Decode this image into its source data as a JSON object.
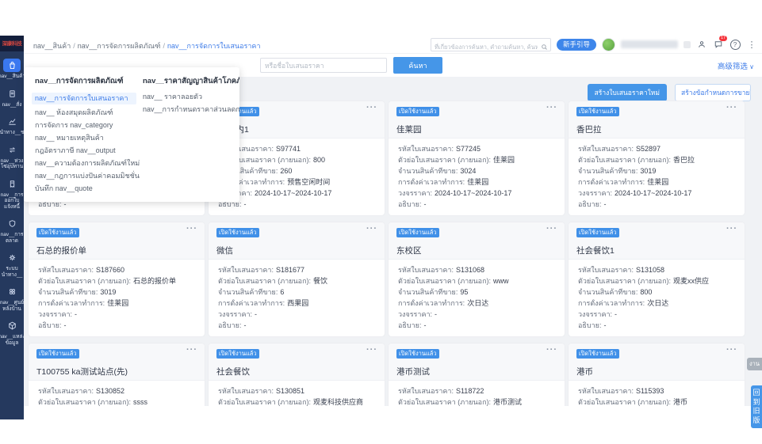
{
  "logo": {
    "text": "深康科技"
  },
  "breadcrumb": {
    "items": [
      "nav__สินค้า",
      "nav__การจัดการผลิตภัณฑ์",
      "nav__การจัดการใบเสนอราคา"
    ]
  },
  "header": {
    "search_placeholder": "ที่เกี่ยวข้องการค้นหา, คำถามค้นหา, ค้นหาเอกสา",
    "guide_button": "新手引导",
    "badge_count": "17"
  },
  "toolbar": {
    "search_placeholder": "หรือชื่อใบเสนอราคา",
    "search_button": "ค้นหา",
    "advanced_filter": "高级筛选"
  },
  "actions": {
    "create_quote": "สร้างใบเสนอราคาใหม่",
    "batch_create": "สร้างข้อกำหนดการขายใหม่เป็นชุด"
  },
  "sidebar": {
    "items": [
      {
        "icon": "bag",
        "label": "nav__สินค้า",
        "active": true
      },
      {
        "icon": "doc",
        "label": "nav__สั่ง",
        "active": false
      },
      {
        "icon": "chart",
        "label": "นำทาง__ช",
        "active": false
      },
      {
        "icon": "swap",
        "label": "nav__ห่วง\nโซ่อุปทาน",
        "active": false
      },
      {
        "icon": "invoice",
        "label": "nav__การ\nออกใบ\nแจ้งหนี้",
        "active": false
      },
      {
        "icon": "shield",
        "label": "nav__การ\nตลาด",
        "active": false
      },
      {
        "icon": "gear",
        "label": "ระบบ\nนำทาง__",
        "active": false
      },
      {
        "icon": "circles",
        "label": "nav__ศูนย์\nหลังบ้าน",
        "active": false
      },
      {
        "icon": "cube",
        "label": "nav__แหล่ง\nข้อมูล",
        "active": false
      }
    ]
  },
  "menu": {
    "col1": {
      "header": "nav__การจัดการผลิตภัณฑ์",
      "items": [
        {
          "label": "nav__การจัดการใบเสนอราคา",
          "active": true
        },
        {
          "label": "nav__ ห้องสมุดผลิตภัณฑ์",
          "active": false
        },
        {
          "label": "การจัดการ nav_category",
          "active": false
        },
        {
          "label": "nav__ หมายเหตุสินค้า",
          "active": false
        },
        {
          "label": "กฎอัตราภาษี nav__output",
          "active": false
        },
        {
          "label": "nav__ความต้องการผลิตภัณฑ์ใหม่",
          "active": false
        },
        {
          "label": "nav__กฎการแบ่งปันค่าคอมมิชชั่น",
          "active": false
        },
        {
          "label": "บันทึก nav__quote",
          "active": false
        }
      ]
    },
    "col2": {
      "header": "nav__ราคาสัญญาสินค้าโภคภัณฑ์",
      "items": [
        {
          "label": "nav__ ราคาลอยตัว",
          "active": false
        },
        {
          "label": "nav__การกำหนดราคาส่วนลดการสั่งซื้อแบบเต็ม",
          "active": false
        }
      ]
    }
  },
  "badge_active": "เปิดใช้งานแล้ว",
  "card_labels": {
    "code": "รหัสใบเสนอราคา:",
    "abbr": "ตัวย่อใบเสนอราคา (ภายนอก):",
    "qty": "จำนวนสินค้าที่ขาย:",
    "hours": "การตั้งค่าเวลาทำการ:",
    "cycle": "วงจรราคา:",
    "desc": "อธิบาย:"
  },
  "cards": [
    {
      "title": "",
      "values": {
        "code": "",
        "abbr": "",
        "qty": "",
        "hours": "",
        "cycle": "-",
        "desc": "-"
      }
    },
    {
      "title": "报价-内1",
      "values": {
        "code": "S97741",
        "abbr": "800",
        "qty": "260",
        "hours": "预售空闲时间",
        "cycle": "2024-10-17~2024-10-17",
        "desc": "-"
      }
    },
    {
      "title": "佳莱园",
      "values": {
        "code": "S77245",
        "abbr": "佳莱园",
        "qty": "3024",
        "hours": "佳莱园",
        "cycle": "2024-10-17~2024-10-17",
        "desc": "-"
      }
    },
    {
      "title": "香巴拉",
      "values": {
        "code": "S52897",
        "abbr": "香巴拉",
        "qty": "3019",
        "hours": "佳莱园",
        "cycle": "2024-10-17~2024-10-17",
        "desc": "-"
      }
    },
    {
      "title": "石总的报价单",
      "values": {
        "code": "S187660",
        "abbr": "石总的报价单",
        "qty": "3019",
        "hours": "佳莱园",
        "cycle": "-",
        "desc": "-"
      }
    },
    {
      "title": "微信",
      "values": {
        "code": "S181677",
        "abbr": "餐饮",
        "qty": "6",
        "hours": "西果园",
        "cycle": "-",
        "desc": "-"
      }
    },
    {
      "title": "东校区",
      "values": {
        "code": "S131068",
        "abbr": "www",
        "qty": "95",
        "hours": "次日达",
        "cycle": "-",
        "desc": "-"
      }
    },
    {
      "title": "社会餐饮1",
      "values": {
        "code": "S131058",
        "abbr": "观麦xx供应",
        "qty": "800",
        "hours": "次日达",
        "cycle": "-",
        "desc": "-"
      }
    },
    {
      "title": "T100755 ka测试站点(先)",
      "values": {
        "code": "S130852",
        "abbr": "ssss",
        "qty": "2"
      }
    },
    {
      "title": "社会餐饮",
      "values": {
        "code": "S130851",
        "abbr": "观麦科技供应商",
        "qty": "15"
      }
    },
    {
      "title": "港币测试",
      "values": {
        "code": "S118722",
        "abbr": "港币测试",
        "qty": "1484"
      }
    },
    {
      "title": "港币",
      "values": {
        "code": "S115393",
        "abbr": "港币",
        "qty": "1412"
      }
    }
  ],
  "side_tabs": {
    "work": "งาน",
    "old_version": "回到旧版"
  }
}
